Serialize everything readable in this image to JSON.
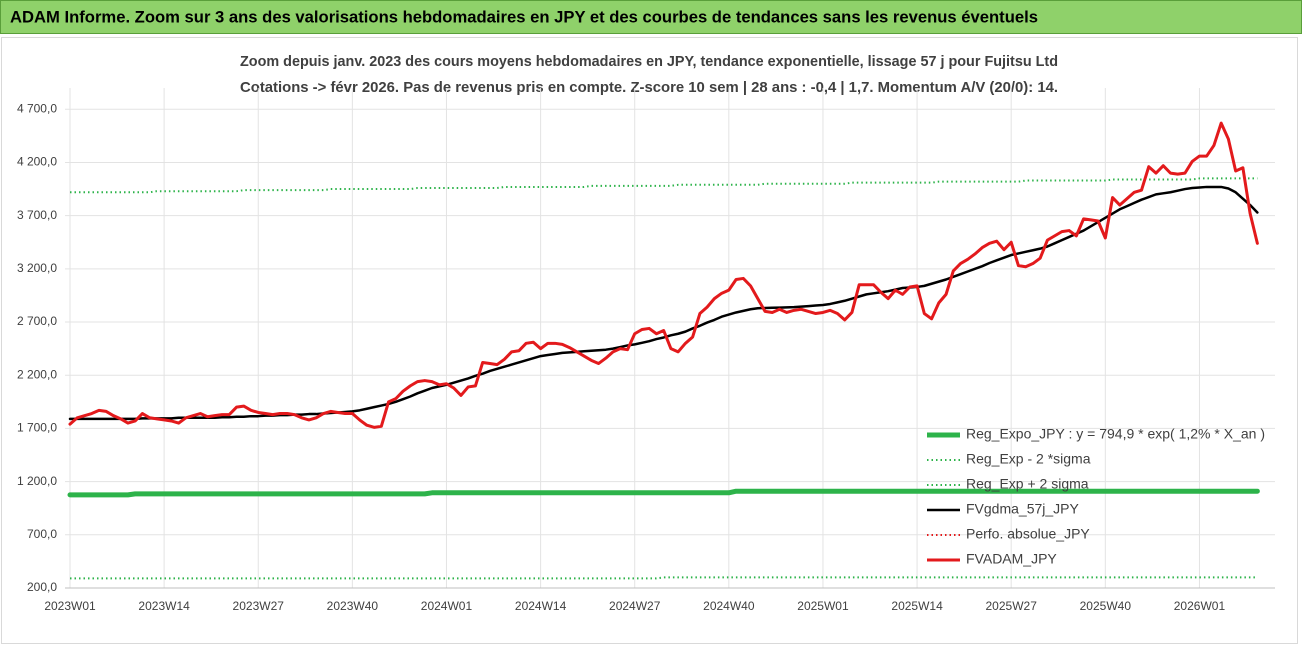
{
  "chart_data": {
    "type": "line",
    "title": "ADAM Informe. Zoom sur 3 ans des valorisations hebdomadaires en JPY et des courbes de tendances sans les revenus éventuels",
    "subtitle": [
      "Zoom depuis janv. 2023 des cours moyens hebdomadaires en JPY, tendance exponentielle, lissage 57 j pour Fujitsu Ltd",
      "Cotations -> févr 2026. Pas de revenus pris en compte. Z-score 10 sem | 28 ans : -0,4 | 1,7. Momentum A/V (20/0): 14."
    ],
    "categories": [
      "2023W01",
      null,
      null,
      null,
      null,
      null,
      null,
      null,
      null,
      null,
      null,
      null,
      null,
      "2023W14",
      null,
      null,
      null,
      null,
      null,
      null,
      null,
      null,
      null,
      null,
      null,
      null,
      "2023W27",
      null,
      null,
      null,
      null,
      null,
      null,
      null,
      null,
      null,
      null,
      null,
      null,
      "2023W40",
      null,
      null,
      null,
      null,
      null,
      null,
      null,
      null,
      null,
      null,
      null,
      null,
      "2024W01",
      null,
      null,
      null,
      null,
      null,
      null,
      null,
      null,
      null,
      null,
      null,
      null,
      "2024W14",
      null,
      null,
      null,
      null,
      null,
      null,
      null,
      null,
      null,
      null,
      null,
      null,
      "2024W27",
      null,
      null,
      null,
      null,
      null,
      null,
      null,
      null,
      null,
      null,
      null,
      null,
      "2024W40",
      null,
      null,
      null,
      null,
      null,
      null,
      null,
      null,
      null,
      null,
      null,
      null,
      "2025W01",
      null,
      null,
      null,
      null,
      null,
      null,
      null,
      null,
      null,
      null,
      null,
      null,
      "2025W14",
      null,
      null,
      null,
      null,
      null,
      null,
      null,
      null,
      null,
      null,
      null,
      null,
      "2025W27",
      null,
      null,
      null,
      null,
      null,
      null,
      null,
      null,
      null,
      null,
      null,
      null,
      "2025W40",
      null,
      null,
      null,
      null,
      null,
      null,
      null,
      null,
      null,
      null,
      null,
      null,
      "2026W01",
      null,
      null,
      null,
      null,
      null,
      null,
      null,
      null
    ],
    "ylim": [
      200,
      4900
    ],
    "yticks": [
      {
        "value": 200,
        "label": "200,0"
      },
      {
        "value": 700,
        "label": "700,0"
      },
      {
        "value": 1200,
        "label": "1 200,0"
      },
      {
        "value": 1700,
        "label": "1 700,0"
      },
      {
        "value": 2200,
        "label": "2 200,0"
      },
      {
        "value": 2700,
        "label": "2 700,0"
      },
      {
        "value": 3200,
        "label": "3 200,0"
      },
      {
        "value": 3700,
        "label": "3 700,0"
      },
      {
        "value": 4200,
        "label": "4 200,0"
      },
      {
        "value": 4700,
        "label": "4 700,0"
      }
    ],
    "grid": true,
    "legend": "lower right",
    "series": [
      {
        "name": "Reg_Expo_JPY : y = 794,9 * exp( 1,2% *  X_an )",
        "color": "#2db34a",
        "style": "solid",
        "values": [
          1075,
          1075,
          1075,
          1075,
          1075,
          1075,
          1075,
          1075,
          1075,
          1085,
          1085,
          1085,
          1085,
          1085,
          1085,
          1085,
          1085,
          1085,
          1085,
          1085,
          1085,
          1085,
          1085,
          1085,
          1085,
          1085,
          1085,
          1085,
          1085,
          1085,
          1085,
          1085,
          1085,
          1085,
          1085,
          1085,
          1085,
          1085,
          1085,
          1085,
          1085,
          1085,
          1085,
          1085,
          1085,
          1085,
          1085,
          1085,
          1085,
          1085,
          1095,
          1095,
          1095,
          1095,
          1095,
          1095,
          1095,
          1095,
          1095,
          1095,
          1095,
          1095,
          1095,
          1095,
          1095,
          1095,
          1095,
          1095,
          1095,
          1095,
          1095,
          1095,
          1095,
          1095,
          1095,
          1095,
          1095,
          1095,
          1095,
          1095,
          1095,
          1095,
          1095,
          1095,
          1095,
          1095,
          1095,
          1095,
          1095,
          1095,
          1095,
          1095,
          1110,
          1110,
          1110,
          1110,
          1110,
          1110,
          1110,
          1110,
          1110,
          1110,
          1110,
          1110,
          1110,
          1110,
          1110,
          1110,
          1110,
          1110,
          1110,
          1110,
          1110,
          1110,
          1110,
          1110,
          1110,
          1110,
          1110,
          1110,
          1110,
          1110,
          1110,
          1110,
          1110,
          1110,
          1110,
          1110,
          1110,
          1110,
          1110,
          1110,
          1110,
          1110,
          1110,
          1110,
          1110,
          1110,
          1110,
          1110,
          1110,
          1110,
          1110,
          1110,
          1110,
          1110,
          1110,
          1110,
          1110,
          1110,
          1110,
          1110,
          1110,
          1110,
          1110,
          1110,
          1110,
          1110,
          1110,
          1110,
          1110,
          1110,
          1110,
          1110,
          1110
        ]
      },
      {
        "name": "Reg_Exp - 2 *sigma",
        "color": "#2db34a",
        "style": "dotted",
        "values": [
          290,
          290,
          290,
          290,
          290,
          290,
          290,
          290,
          290,
          290,
          290,
          290,
          290,
          290,
          290,
          290,
          290,
          290,
          290,
          290,
          290,
          290,
          290,
          290,
          290,
          290,
          290,
          290,
          290,
          290,
          290,
          290,
          290,
          290,
          290,
          290,
          290,
          290,
          290,
          290,
          290,
          290,
          290,
          290,
          290,
          290,
          290,
          290,
          290,
          290,
          290,
          290,
          290,
          290,
          290,
          290,
          290,
          290,
          290,
          290,
          290,
          290,
          290,
          290,
          290,
          290,
          290,
          290,
          290,
          290,
          290,
          290,
          290,
          290,
          290,
          290,
          290,
          290,
          290,
          290,
          290,
          290,
          300,
          300,
          300,
          300,
          300,
          300,
          300,
          300,
          300,
          300,
          300,
          300,
          300,
          300,
          300,
          300,
          300,
          300,
          300,
          300,
          300,
          300,
          300,
          300,
          300,
          300,
          300,
          300,
          300,
          300,
          300,
          300,
          300,
          300,
          300,
          300,
          300,
          300,
          300,
          300,
          300,
          300,
          300,
          300,
          300,
          300,
          300,
          300,
          300,
          300,
          300,
          300,
          300,
          300,
          300,
          300,
          300,
          300,
          300,
          300,
          300,
          300,
          300,
          300,
          300,
          300,
          300,
          300,
          300,
          300,
          300,
          300,
          300,
          300,
          300,
          300,
          300,
          300,
          300,
          300,
          300,
          300,
          300
        ]
      },
      {
        "name": "Reg_Exp + 2 sigma",
        "color": "#2db34a",
        "style": "dotted",
        "values": [
          3920,
          3920,
          3920,
          3920,
          3920,
          3920,
          3920,
          3920,
          3920,
          3920,
          3920,
          3920,
          3930,
          3930,
          3930,
          3930,
          3930,
          3930,
          3930,
          3930,
          3930,
          3930,
          3930,
          3930,
          3940,
          3940,
          3940,
          3940,
          3940,
          3940,
          3940,
          3940,
          3940,
          3940,
          3940,
          3940,
          3950,
          3950,
          3950,
          3950,
          3950,
          3950,
          3950,
          3950,
          3950,
          3950,
          3950,
          3950,
          3960,
          3960,
          3960,
          3960,
          3960,
          3960,
          3960,
          3960,
          3960,
          3960,
          3960,
          3960,
          3970,
          3970,
          3970,
          3970,
          3970,
          3970,
          3970,
          3970,
          3970,
          3970,
          3970,
          3970,
          3980,
          3980,
          3980,
          3980,
          3980,
          3980,
          3980,
          3980,
          3980,
          3980,
          3980,
          3980,
          3990,
          3990,
          3990,
          3990,
          3990,
          3990,
          3990,
          3990,
          3990,
          3990,
          3990,
          3990,
          4000,
          4000,
          4000,
          4000,
          4000,
          4000,
          4000,
          4000,
          4000,
          4000,
          4000,
          4000,
          4010,
          4010,
          4010,
          4010,
          4010,
          4010,
          4010,
          4010,
          4010,
          4010,
          4010,
          4010,
          4020,
          4020,
          4020,
          4020,
          4020,
          4020,
          4020,
          4020,
          4020,
          4020,
          4020,
          4020,
          4030,
          4030,
          4030,
          4030,
          4030,
          4030,
          4030,
          4030,
          4030,
          4030,
          4030,
          4030,
          4040,
          4040,
          4040,
          4040,
          4040,
          4040,
          4040,
          4040,
          4040,
          4040,
          4040,
          4040,
          4050,
          4050,
          4050,
          4050,
          4050,
          4050,
          4050,
          4050,
          4050
        ]
      },
      {
        "name": "FVgdma_57j_JPY",
        "color": "#000000",
        "style": "solid",
        "values": [
          1790,
          1790,
          1790,
          1790,
          1790,
          1790,
          1790,
          1790,
          1790,
          1790,
          1795,
          1795,
          1795,
          1795,
          1795,
          1800,
          1800,
          1800,
          1800,
          1800,
          1800,
          1805,
          1805,
          1810,
          1810,
          1815,
          1815,
          1820,
          1820,
          1825,
          1825,
          1830,
          1830,
          1835,
          1835,
          1840,
          1845,
          1850,
          1855,
          1860,
          1870,
          1885,
          1900,
          1915,
          1930,
          1950,
          1975,
          2000,
          2030,
          2055,
          2080,
          2095,
          2110,
          2130,
          2150,
          2170,
          2195,
          2215,
          2240,
          2260,
          2280,
          2300,
          2320,
          2340,
          2360,
          2380,
          2390,
          2400,
          2410,
          2415,
          2420,
          2425,
          2430,
          2435,
          2440,
          2450,
          2465,
          2480,
          2490,
          2505,
          2520,
          2540,
          2555,
          2575,
          2590,
          2610,
          2640,
          2665,
          2695,
          2720,
          2750,
          2770,
          2790,
          2805,
          2820,
          2830,
          2832,
          2834,
          2836,
          2838,
          2840,
          2845,
          2850,
          2855,
          2860,
          2870,
          2885,
          2900,
          2920,
          2940,
          2960,
          2970,
          2980,
          2990,
          3005,
          3020,
          3025,
          3030,
          3040,
          3060,
          3080,
          3100,
          3125,
          3150,
          3175,
          3200,
          3225,
          3255,
          3280,
          3305,
          3330,
          3345,
          3360,
          3375,
          3390,
          3410,
          3440,
          3470,
          3500,
          3530,
          3560,
          3600,
          3640,
          3680,
          3720,
          3760,
          3790,
          3820,
          3850,
          3875,
          3900,
          3910,
          3920,
          3935,
          3950,
          3960,
          3965,
          3970,
          3970,
          3970,
          3955,
          3920,
          3860,
          3800,
          3730
        ]
      },
      {
        "name": "Perfo. absolue_JPY",
        "color": "#e31a1c",
        "style": "dotted",
        "values": [
          1740,
          1800,
          1820,
          1840,
          1870,
          1860,
          1820,
          1790,
          1750,
          1770,
          1840,
          1800,
          1790,
          1780,
          1770,
          1750,
          1800,
          1820,
          1840,
          1810,
          1820,
          1830,
          1830,
          1900,
          1910,
          1870,
          1850,
          1840,
          1830,
          1840,
          1840,
          1830,
          1800,
          1780,
          1800,
          1840,
          1860,
          1850,
          1840,
          1840,
          1780,
          1730,
          1710,
          1720,
          1950,
          1980,
          2050,
          2100,
          2140,
          2150,
          2140,
          2110,
          2120,
          2080,
          2010,
          2090,
          2100,
          2320,
          2310,
          2300,
          2350,
          2420,
          2430,
          2500,
          2510,
          2450,
          2500,
          2500,
          2490,
          2460,
          2420,
          2380,
          2340,
          2310,
          2360,
          2420,
          2450,
          2440,
          2590,
          2630,
          2640,
          2590,
          2620,
          2450,
          2420,
          2500,
          2560,
          2780,
          2840,
          2920,
          2970,
          3000,
          3100,
          3110,
          3040,
          2920,
          2800,
          2790,
          2820,
          2790,
          2810,
          2820,
          2800,
          2780,
          2790,
          2810,
          2780,
          2720,
          2790,
          3050,
          3050,
          3050,
          2980,
          2920,
          3000,
          2960,
          3030,
          3040,
          2780,
          2730,
          2880,
          2960,
          3180,
          3250,
          3290,
          3340,
          3400,
          3440,
          3460,
          3380,
          3450,
          3230,
          3220,
          3250,
          3300,
          3470,
          3510,
          3550,
          3560,
          3510,
          3670,
          3660,
          3650,
          3490,
          3870,
          3800,
          3860,
          3920,
          3940,
          4160,
          4100,
          4170,
          4100,
          4090,
          4100,
          4210,
          4260,
          4260,
          4360,
          4570,
          4420,
          4120,
          4150,
          3720,
          3440
        ]
      },
      {
        "name": "FVADAM_JPY",
        "color": "#e31a1c",
        "style": "solid",
        "values": [
          1740,
          1800,
          1820,
          1840,
          1870,
          1860,
          1820,
          1790,
          1750,
          1770,
          1840,
          1800,
          1790,
          1780,
          1770,
          1750,
          1800,
          1820,
          1840,
          1810,
          1820,
          1830,
          1830,
          1900,
          1910,
          1870,
          1850,
          1840,
          1830,
          1840,
          1840,
          1830,
          1800,
          1780,
          1800,
          1840,
          1860,
          1850,
          1840,
          1840,
          1780,
          1730,
          1710,
          1720,
          1950,
          1980,
          2050,
          2100,
          2140,
          2150,
          2140,
          2110,
          2120,
          2080,
          2010,
          2090,
          2100,
          2320,
          2310,
          2300,
          2350,
          2420,
          2430,
          2500,
          2510,
          2450,
          2500,
          2500,
          2490,
          2460,
          2420,
          2380,
          2340,
          2310,
          2360,
          2420,
          2450,
          2440,
          2590,
          2630,
          2640,
          2590,
          2620,
          2450,
          2420,
          2500,
          2560,
          2780,
          2840,
          2920,
          2970,
          3000,
          3100,
          3110,
          3040,
          2920,
          2800,
          2790,
          2820,
          2790,
          2810,
          2820,
          2800,
          2780,
          2790,
          2810,
          2780,
          2720,
          2790,
          3050,
          3050,
          3050,
          2980,
          2920,
          3000,
          2960,
          3030,
          3040,
          2780,
          2730,
          2880,
          2960,
          3180,
          3250,
          3290,
          3340,
          3400,
          3440,
          3460,
          3380,
          3450,
          3230,
          3220,
          3250,
          3300,
          3470,
          3510,
          3550,
          3560,
          3510,
          3670,
          3660,
          3650,
          3490,
          3870,
          3800,
          3860,
          3920,
          3940,
          4160,
          4100,
          4170,
          4100,
          4090,
          4100,
          4210,
          4260,
          4260,
          4360,
          4570,
          4420,
          4120,
          4150,
          3720,
          3440
        ]
      }
    ]
  }
}
